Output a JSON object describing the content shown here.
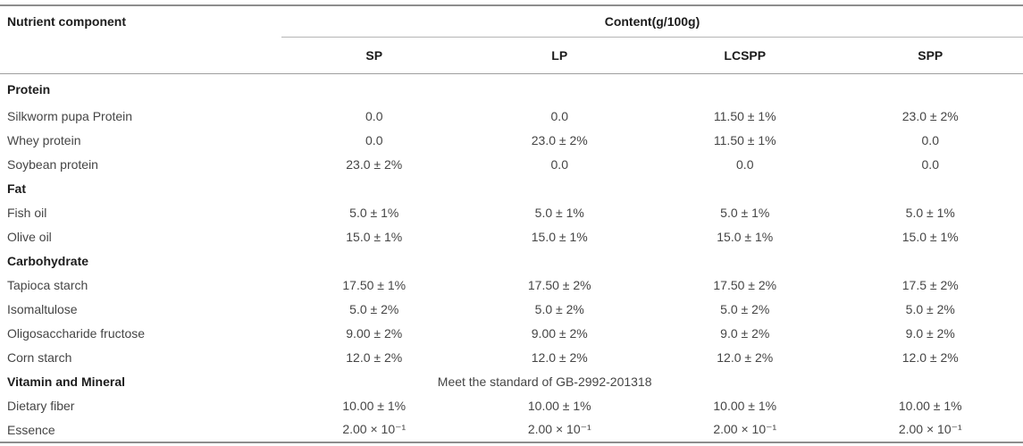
{
  "table": {
    "nutrient_header": "Nutrient component",
    "content_header": "Content(g/100g)",
    "columns": [
      "SP",
      "LP",
      "LCSPP",
      "SPP"
    ],
    "sections": [
      {
        "title": "Protein",
        "rows": [
          {
            "label": "Silkworm pupa Protein",
            "values": [
              "0.0",
              "0.0",
              "11.50 ± 1%",
              "23.0 ± 2%"
            ]
          },
          {
            "label": "Whey protein",
            "values": [
              "0.0",
              "23.0 ± 2%",
              "11.50 ± 1%",
              "0.0"
            ]
          },
          {
            "label": "Soybean protein",
            "values": [
              "23.0 ± 2%",
              "0.0",
              "0.0",
              "0.0"
            ]
          }
        ]
      },
      {
        "title": "Fat",
        "rows": [
          {
            "label": "Fish oil",
            "values": [
              "5.0 ± 1%",
              "5.0 ± 1%",
              "5.0 ± 1%",
              "5.0 ± 1%"
            ]
          },
          {
            "label": "Olive oil",
            "values": [
              "15.0 ± 1%",
              "15.0 ± 1%",
              "15.0 ± 1%",
              "15.0 ± 1%"
            ]
          }
        ]
      },
      {
        "title": "Carbohydrate",
        "rows": [
          {
            "label": "Tapioca starch",
            "values": [
              "17.50 ± 1%",
              "17.50 ± 2%",
              "17.50 ± 2%",
              "17.5 ± 2%"
            ]
          },
          {
            "label": "Isomaltulose",
            "values": [
              "5.0 ± 2%",
              "5.0 ± 2%",
              "5.0 ± 2%",
              "5.0 ± 2%"
            ]
          },
          {
            "label": "Oligosaccharide fructose",
            "values": [
              "9.00 ± 2%",
              "9.00 ± 2%",
              "9.0 ± 2%",
              "9.0 ± 2%"
            ]
          },
          {
            "label": "Corn starch",
            "values": [
              "12.0 ± 2%",
              "12.0 ± 2%",
              "12.0 ± 2%",
              "12.0 ± 2%"
            ]
          }
        ]
      },
      {
        "title": "Vitamin and Mineral",
        "note": "Meet the standard of GB-2992-201318",
        "rows": [
          {
            "label": "Dietary fiber",
            "values": [
              "10.00 ± 1%",
              "10.00 ± 1%",
              "10.00 ± 1%",
              "10.00 ± 1%"
            ]
          },
          {
            "label": "Essence",
            "values": [
              "2.00 × 10⁻¹",
              "2.00 × 10⁻¹",
              "2.00 × 10⁻¹",
              "2.00 × 10⁻¹"
            ]
          }
        ]
      }
    ],
    "colors": {
      "rule_dark": "#8d8d8d",
      "rule_light": "#b5b5b5",
      "rule_mid": "#9e9e9e",
      "heading_text": "#1c1c1c",
      "body_text": "#454545",
      "background": "#ffffff"
    }
  }
}
